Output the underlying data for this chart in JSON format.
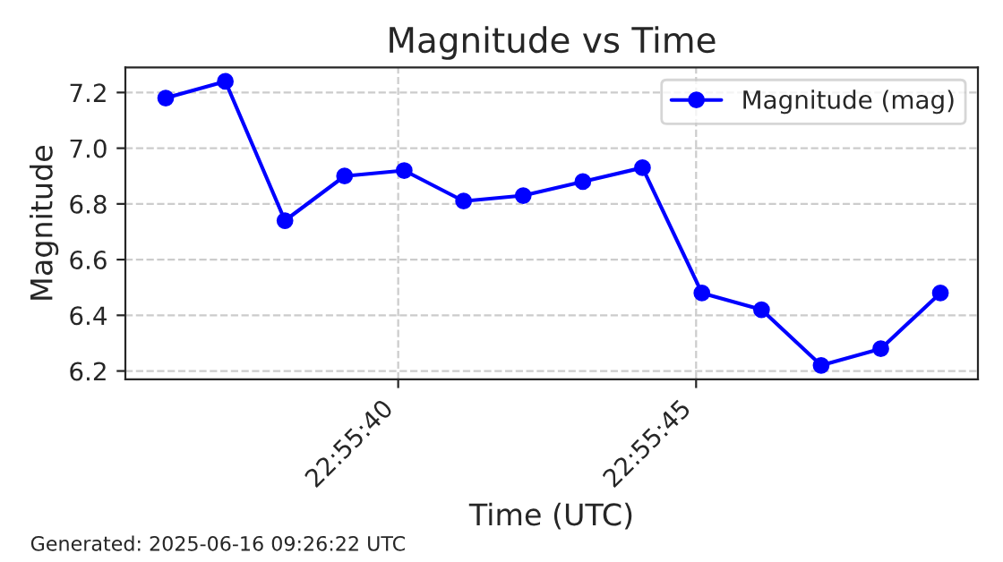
{
  "chart_data": {
    "type": "line",
    "title": "Magnitude vs Time",
    "xlabel": "Time (UTC)",
    "ylabel": "Magnitude",
    "x": [
      22.926694,
      22.926972,
      22.92725,
      22.927528,
      22.927806,
      22.928083,
      22.928361,
      22.928639,
      22.928917,
      22.929194,
      22.929472,
      22.92975,
      22.930028,
      22.930306
    ],
    "series": [
      {
        "name": "Magnitude (mag)",
        "color": "#0000ff",
        "values": [
          7.18,
          7.24,
          6.74,
          6.9,
          6.92,
          6.81,
          6.83,
          6.88,
          6.93,
          6.48,
          6.42,
          6.22,
          6.28,
          6.48
        ]
      }
    ],
    "xlim": [
      22.926506,
      22.930481
    ],
    "xticks": [
      {
        "value": 22.927778,
        "label": "22:55:40"
      },
      {
        "value": 22.929167,
        "label": "22:55:45"
      }
    ],
    "ylim": [
      6.17,
      7.29
    ],
    "yticks": [
      {
        "value": 6.2,
        "label": "6.2"
      },
      {
        "value": 6.4,
        "label": "6.4"
      },
      {
        "value": 6.6,
        "label": "6.6"
      },
      {
        "value": 6.8,
        "label": "6.8"
      },
      {
        "value": 7.0,
        "label": "7.0"
      },
      {
        "value": 7.2,
        "label": "7.2"
      }
    ],
    "grid": true,
    "legend": "top right",
    "marker": "circle",
    "line_style": "solid",
    "annotations": [
      "Generated: 2025-06-16 09:26:22 UTC"
    ]
  }
}
